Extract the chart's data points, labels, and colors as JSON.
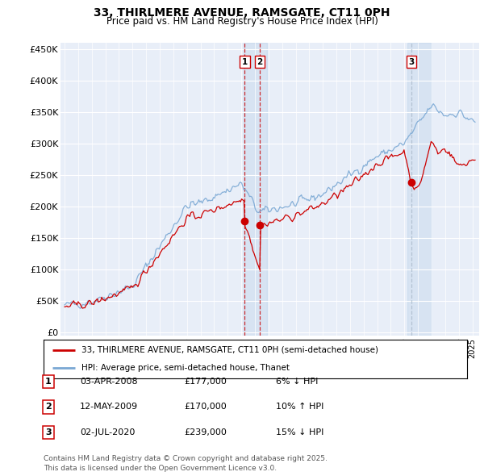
{
  "title": "33, THIRLMERE AVENUE, RAMSGATE, CT11 0PH",
  "subtitle": "Price paid vs. HM Land Registry's House Price Index (HPI)",
  "ylabel_ticks": [
    "£0",
    "£50K",
    "£100K",
    "£150K",
    "£200K",
    "£250K",
    "£300K",
    "£350K",
    "£400K",
    "£450K"
  ],
  "ytick_vals": [
    0,
    50000,
    100000,
    150000,
    200000,
    250000,
    300000,
    350000,
    400000,
    450000
  ],
  "ylim": [
    0,
    460000
  ],
  "xlim_start": 1994.7,
  "xlim_end": 2025.5,
  "legend_red": "33, THIRLMERE AVENUE, RAMSGATE, CT11 0PH (semi-detached house)",
  "legend_blue": "HPI: Average price, semi-detached house, Thanet",
  "transaction1_date": "03-APR-2008",
  "transaction1_price": "£177,000",
  "transaction1_hpi": "6% ↓ HPI",
  "transaction2_date": "12-MAY-2009",
  "transaction2_price": "£170,000",
  "transaction2_hpi": "10% ↑ HPI",
  "transaction3_date": "02-JUL-2020",
  "transaction3_price": "£239,000",
  "transaction3_hpi": "15% ↓ HPI",
  "footer": "Contains HM Land Registry data © Crown copyright and database right 2025.\nThis data is licensed under the Open Government Licence v3.0.",
  "color_red": "#cc0000",
  "color_blue": "#7aa8d4",
  "color_vline_red": "#cc0000",
  "color_vline_blue": "#aabbcc",
  "background_chart": "#e8eef8",
  "t1_x": 2008.25,
  "t2_x": 2009.37,
  "t3_x": 2020.5,
  "t1_y": 177000,
  "t2_y": 170000,
  "t3_y": 239000
}
